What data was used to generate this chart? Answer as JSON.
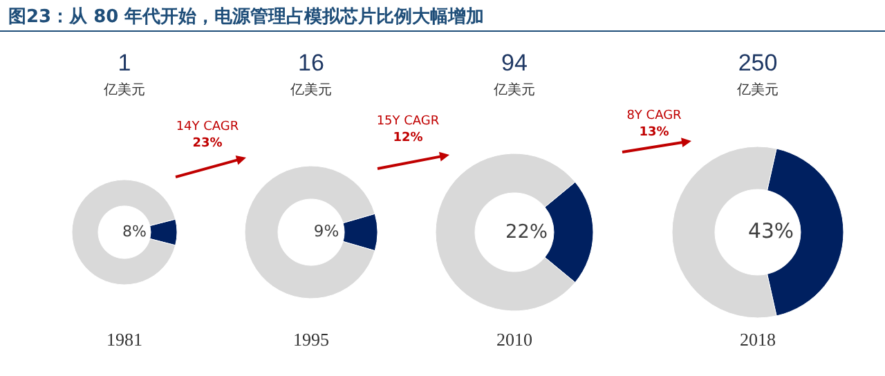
{
  "chart_data": [
    {
      "type": "other",
      "title": "图23：从 80 年代开始，电源管理占模拟芯片比例大幅增加"
    },
    {
      "type": "donut",
      "title": "1",
      "subtitle": "亿美元",
      "xlabel": "1981",
      "categories": [
        null,
        null
      ],
      "values": [
        8,
        92
      ],
      "colors": [
        "#002060",
        "#d9d9d9"
      ],
      "value_labels": [
        "8%",
        null
      ]
    },
    {
      "type": "donut",
      "title": "16",
      "subtitle": "亿美元",
      "xlabel": "1995",
      "categories": [
        null,
        null
      ],
      "values": [
        9,
        91
      ],
      "colors": [
        "#002060",
        "#d9d9d9"
      ],
      "value_labels": [
        "9%",
        null
      ],
      "annotations": [
        "14Y CAGR",
        "23%"
      ]
    },
    {
      "type": "donut",
      "title": "94",
      "subtitle": "亿美元",
      "xlabel": "2010",
      "categories": [
        null,
        null
      ],
      "values": [
        22,
        78
      ],
      "colors": [
        "#002060",
        "#d9d9d9"
      ],
      "value_labels": [
        "22%",
        null
      ],
      "annotations": [
        "15Y CAGR",
        "12%"
      ]
    },
    {
      "type": "donut",
      "title": "250",
      "subtitle": "亿美元",
      "xlabel": "2018",
      "categories": [
        null,
        null
      ],
      "values": [
        43,
        57
      ],
      "colors": [
        "#002060",
        "#d9d9d9"
      ],
      "value_labels": [
        "43%",
        null
      ],
      "annotations": [
        "8Y CAGR",
        "13%"
      ]
    }
  ]
}
